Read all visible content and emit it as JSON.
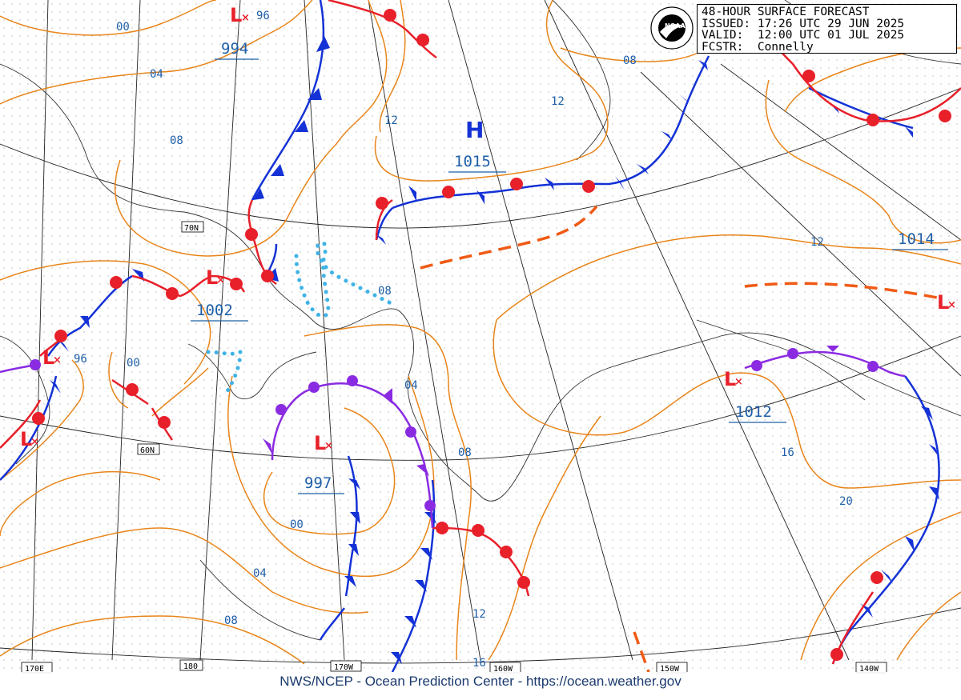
{
  "header": {
    "title": "48-HOUR SURFACE FORECAST",
    "issued": "ISSUED: 17:26 UTC 29 JUN 2025",
    "valid": "VALID:  12:00 UTC 01 JUL 2025",
    "forecaster": "FCSTR:  Connelly"
  },
  "credit": "NWS/NCEP - Ocean Prediction Center - https://ocean.weather.gov",
  "logo": {
    "icon": "noaa-logo-icon",
    "text": "NOAA"
  },
  "pressure_centers": {
    "h_north": {
      "symbol": "H",
      "value": "1015"
    },
    "l_top": {
      "symbol": "L",
      "value": "994"
    },
    "l_west": {
      "symbol": "L",
      "value": "1002"
    },
    "l_bering": {
      "symbol": "L",
      "value": "997"
    },
    "l_gulf": {
      "symbol": "L",
      "value": "1012"
    },
    "l_east": {
      "symbol": "L",
      "value": "1014"
    },
    "l_far_west1": {
      "symbol": "L"
    },
    "l_far_west2": {
      "symbol": "L"
    }
  },
  "isobar_labels": [
    "00",
    "04",
    "08",
    "12",
    "12",
    "08",
    "96",
    "00",
    "08",
    "04",
    "08",
    "00",
    "04",
    "08",
    "12",
    "16",
    "16",
    "20",
    "12",
    "96"
  ],
  "lat_labels": [
    "70N",
    "60N"
  ],
  "lon_labels": [
    "170E",
    "180",
    "170W",
    "160W",
    "150W",
    "140W"
  ],
  "colors": {
    "isobar": "#e8851a",
    "cold_front": "#1432d6",
    "warm_front": "#e8202a",
    "occluded": "#8a2be2",
    "trough": "#f05a14",
    "ice": "#3fb3e6",
    "label": "#1f5fa8"
  }
}
